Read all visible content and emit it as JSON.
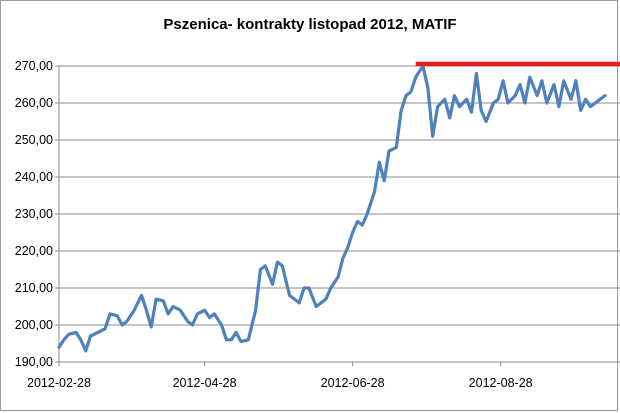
{
  "chart_data": {
    "type": "line",
    "title": "Pszenica- kontrakty listopad 2012, MATIF",
    "xlabel": "",
    "ylabel": "",
    "ylim": [
      190,
      270
    ],
    "y_ticks": [
      190,
      200,
      210,
      220,
      230,
      240,
      250,
      260,
      270
    ],
    "y_tick_labels": [
      "190,00",
      "200,00",
      "210,00",
      "220,00",
      "230,00",
      "240,00",
      "250,00",
      "260,00",
      "270,00"
    ],
    "x_ticks": [
      "2012-02-28",
      "2012-04-28",
      "2012-06-28",
      "2012-08-28"
    ],
    "x_range": [
      "2012-02-28",
      "2012-10-10"
    ],
    "grid": true,
    "legend": "none",
    "series": [
      {
        "color": "#4f81bd",
        "points": [
          [
            "2012-02-28",
            194.0
          ],
          [
            "2012-03-01",
            196.0
          ],
          [
            "2012-03-03",
            197.5
          ],
          [
            "2012-03-06",
            198.0
          ],
          [
            "2012-03-08",
            196.0
          ],
          [
            "2012-03-10",
            193.0
          ],
          [
            "2012-03-12",
            197.0
          ],
          [
            "2012-03-15",
            198.0
          ],
          [
            "2012-03-18",
            199.0
          ],
          [
            "2012-03-20",
            203.0
          ],
          [
            "2012-03-23",
            202.5
          ],
          [
            "2012-03-25",
            200.0
          ],
          [
            "2012-03-27",
            201.0
          ],
          [
            "2012-03-30",
            204.0
          ],
          [
            "2012-04-02",
            208.0
          ],
          [
            "2012-04-04",
            204.0
          ],
          [
            "2012-04-06",
            199.5
          ],
          [
            "2012-04-08",
            207.0
          ],
          [
            "2012-04-11",
            206.5
          ],
          [
            "2012-04-13",
            203.0
          ],
          [
            "2012-04-15",
            205.0
          ],
          [
            "2012-04-18",
            204.0
          ],
          [
            "2012-04-21",
            201.0
          ],
          [
            "2012-04-23",
            200.0
          ],
          [
            "2012-04-25",
            203.0
          ],
          [
            "2012-04-28",
            204.0
          ],
          [
            "2012-04-30",
            202.0
          ],
          [
            "2012-05-02",
            203.0
          ],
          [
            "2012-05-05",
            200.0
          ],
          [
            "2012-05-07",
            196.0
          ],
          [
            "2012-05-09",
            196.0
          ],
          [
            "2012-05-11",
            198.0
          ],
          [
            "2012-05-13",
            195.5
          ],
          [
            "2012-05-16",
            196.0
          ],
          [
            "2012-05-19",
            204.0
          ],
          [
            "2012-05-21",
            215.0
          ],
          [
            "2012-05-23",
            216.0
          ],
          [
            "2012-05-26",
            211.0
          ],
          [
            "2012-05-28",
            217.0
          ],
          [
            "2012-05-30",
            216.0
          ],
          [
            "2012-06-02",
            208.0
          ],
          [
            "2012-06-04",
            207.0
          ],
          [
            "2012-06-06",
            206.0
          ],
          [
            "2012-06-08",
            210.0
          ],
          [
            "2012-06-10",
            210.0
          ],
          [
            "2012-06-13",
            205.0
          ],
          [
            "2012-06-15",
            206.0
          ],
          [
            "2012-06-17",
            207.0
          ],
          [
            "2012-06-19",
            210.0
          ],
          [
            "2012-06-22",
            213.0
          ],
          [
            "2012-06-24",
            218.0
          ],
          [
            "2012-06-26",
            221.0
          ],
          [
            "2012-06-28",
            225.0
          ],
          [
            "2012-06-30",
            228.0
          ],
          [
            "2012-07-02",
            227.0
          ],
          [
            "2012-07-04",
            230.0
          ],
          [
            "2012-07-07",
            236.0
          ],
          [
            "2012-07-09",
            244.0
          ],
          [
            "2012-07-11",
            239.0
          ],
          [
            "2012-07-13",
            247.0
          ],
          [
            "2012-07-16",
            248.0
          ],
          [
            "2012-07-18",
            258.0
          ],
          [
            "2012-07-20",
            262.0
          ],
          [
            "2012-07-22",
            263.0
          ],
          [
            "2012-07-24",
            267.0
          ],
          [
            "2012-07-27",
            270.0
          ],
          [
            "2012-07-29",
            264.0
          ],
          [
            "2012-07-31",
            251.0
          ],
          [
            "2012-08-02",
            259.0
          ],
          [
            "2012-08-05",
            261.0
          ],
          [
            "2012-08-07",
            256.0
          ],
          [
            "2012-08-09",
            262.0
          ],
          [
            "2012-08-11",
            259.0
          ],
          [
            "2012-08-14",
            261.0
          ],
          [
            "2012-08-16",
            257.5
          ],
          [
            "2012-08-18",
            268.0
          ],
          [
            "2012-08-20",
            258.0
          ],
          [
            "2012-08-22",
            255.0
          ],
          [
            "2012-08-25",
            260.0
          ],
          [
            "2012-08-27",
            261.0
          ],
          [
            "2012-08-29",
            266.0
          ],
          [
            "2012-08-31",
            260.0
          ],
          [
            "2012-09-03",
            262.0
          ],
          [
            "2012-09-05",
            265.0
          ],
          [
            "2012-09-07",
            260.0
          ],
          [
            "2012-09-09",
            267.0
          ],
          [
            "2012-09-12",
            262.0
          ],
          [
            "2012-09-14",
            266.0
          ],
          [
            "2012-09-16",
            260.0
          ],
          [
            "2012-09-19",
            265.0
          ],
          [
            "2012-09-21",
            259.0
          ],
          [
            "2012-09-23",
            266.0
          ],
          [
            "2012-09-26",
            261.0
          ],
          [
            "2012-09-28",
            266.0
          ],
          [
            "2012-09-30",
            258.0
          ],
          [
            "2012-10-02",
            261.0
          ],
          [
            "2012-10-04",
            259.0
          ],
          [
            "2012-10-06",
            260.0
          ],
          [
            "2012-10-08",
            261.0
          ],
          [
            "2012-10-10",
            262.0
          ]
        ]
      }
    ],
    "reference_lines": [
      {
        "y": 270,
        "x_from": "2012-07-24",
        "x_to": "2012-10-10",
        "color": "#e02020"
      }
    ]
  }
}
